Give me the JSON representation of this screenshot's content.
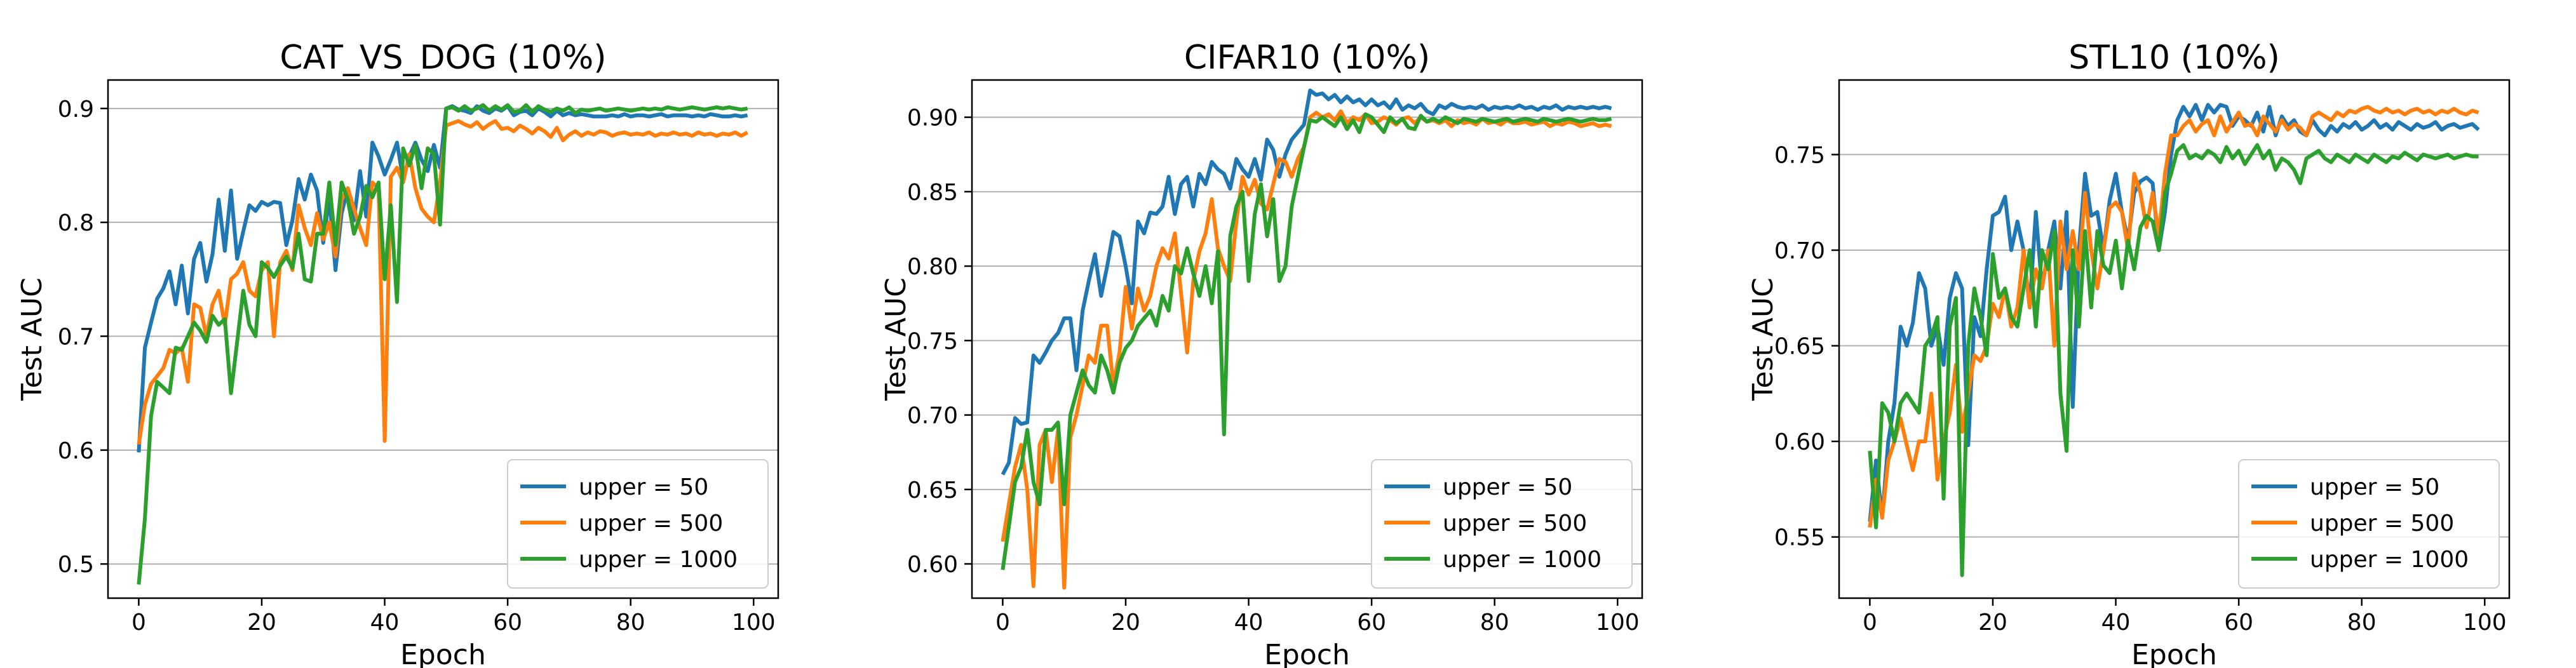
{
  "chart_data": [
    {
      "type": "line",
      "title": "CAT_VS_DOG (10%)",
      "xlabel": "Epoch",
      "ylabel": "Test AUC",
      "xlim": [
        -5,
        104
      ],
      "ylim": [
        0.47,
        0.925
      ],
      "xticks": [
        0,
        20,
        40,
        60,
        80,
        100
      ],
      "yticks": [
        0.5,
        0.6,
        0.7,
        0.8,
        0.9
      ],
      "ytick_labels": [
        "0.5",
        "0.6",
        "0.7",
        "0.8",
        "0.9"
      ],
      "grid": "y",
      "legend_position": "lower-right",
      "series": [
        {
          "name": "upper = 50",
          "color": "#1f77b4",
          "values": [
            0.598,
            0.69,
            0.712,
            0.733,
            0.742,
            0.757,
            0.728,
            0.762,
            0.72,
            0.768,
            0.782,
            0.748,
            0.772,
            0.82,
            0.775,
            0.828,
            0.768,
            0.792,
            0.815,
            0.81,
            0.818,
            0.815,
            0.818,
            0.817,
            0.78,
            0.802,
            0.838,
            0.82,
            0.842,
            0.828,
            0.782,
            0.822,
            0.758,
            0.808,
            0.83,
            0.802,
            0.845,
            0.805,
            0.87,
            0.858,
            0.842,
            0.855,
            0.87,
            0.838,
            0.858,
            0.87,
            0.855,
            0.845,
            0.868,
            0.848,
            0.9,
            0.902,
            0.899,
            0.898,
            0.896,
            0.902,
            0.898,
            0.896,
            0.9,
            0.898,
            0.902,
            0.894,
            0.897,
            0.898,
            0.894,
            0.9,
            0.897,
            0.893,
            0.898,
            0.894,
            0.896,
            0.894,
            0.895,
            0.894,
            0.893,
            0.893,
            0.893,
            0.894,
            0.893,
            0.895,
            0.893,
            0.894,
            0.894,
            0.893,
            0.894,
            0.895,
            0.893,
            0.894,
            0.894,
            0.894,
            0.893,
            0.894,
            0.893,
            0.895,
            0.894,
            0.893,
            0.893,
            0.894,
            0.893,
            0.894
          ]
        },
        {
          "name": "upper = 500",
          "color": "#ff7f0e",
          "values": [
            0.605,
            0.64,
            0.658,
            0.665,
            0.672,
            0.688,
            0.685,
            0.69,
            0.66,
            0.728,
            0.725,
            0.7,
            0.728,
            0.74,
            0.71,
            0.75,
            0.755,
            0.765,
            0.74,
            0.735,
            0.758,
            0.765,
            0.7,
            0.765,
            0.775,
            0.758,
            0.815,
            0.795,
            0.78,
            0.808,
            0.785,
            0.8,
            0.77,
            0.82,
            0.83,
            0.812,
            0.795,
            0.78,
            0.835,
            0.83,
            0.608,
            0.84,
            0.848,
            0.835,
            0.86,
            0.83,
            0.812,
            0.805,
            0.8,
            0.835,
            0.885,
            0.887,
            0.889,
            0.886,
            0.884,
            0.888,
            0.882,
            0.886,
            0.889,
            0.882,
            0.883,
            0.88,
            0.885,
            0.882,
            0.878,
            0.883,
            0.88,
            0.875,
            0.883,
            0.872,
            0.877,
            0.88,
            0.876,
            0.879,
            0.877,
            0.88,
            0.879,
            0.876,
            0.878,
            0.879,
            0.877,
            0.878,
            0.877,
            0.879,
            0.876,
            0.878,
            0.877,
            0.879,
            0.877,
            0.878,
            0.876,
            0.879,
            0.877,
            0.878,
            0.876,
            0.878,
            0.877,
            0.879,
            0.876,
            0.879
          ]
        },
        {
          "name": "upper = 1000",
          "color": "#2ca02c",
          "values": [
            0.482,
            0.54,
            0.63,
            0.66,
            0.655,
            0.65,
            0.69,
            0.688,
            0.7,
            0.712,
            0.705,
            0.695,
            0.718,
            0.71,
            0.715,
            0.65,
            0.695,
            0.74,
            0.71,
            0.7,
            0.765,
            0.76,
            0.752,
            0.762,
            0.77,
            0.76,
            0.79,
            0.75,
            0.748,
            0.79,
            0.79,
            0.835,
            0.78,
            0.835,
            0.82,
            0.79,
            0.805,
            0.832,
            0.822,
            0.835,
            0.75,
            0.815,
            0.73,
            0.865,
            0.85,
            0.868,
            0.83,
            0.865,
            0.86,
            0.798,
            0.9,
            0.901,
            0.898,
            0.902,
            0.898,
            0.9,
            0.903,
            0.898,
            0.902,
            0.899,
            0.903,
            0.897,
            0.898,
            0.903,
            0.897,
            0.902,
            0.899,
            0.897,
            0.9,
            0.898,
            0.901,
            0.896,
            0.899,
            0.898,
            0.899,
            0.9,
            0.898,
            0.899,
            0.9,
            0.899,
            0.898,
            0.899,
            0.9,
            0.899,
            0.9,
            0.899,
            0.901,
            0.9,
            0.899,
            0.9,
            0.901,
            0.9,
            0.899,
            0.9,
            0.901,
            0.9,
            0.901,
            0.9,
            0.899,
            0.9
          ]
        }
      ]
    },
    {
      "type": "line",
      "title": "CIFAR10 (10%)",
      "xlabel": "Epoch",
      "ylabel": "Test AUC",
      "xlim": [
        -5,
        104
      ],
      "ylim": [
        0.577,
        0.925
      ],
      "xticks": [
        0,
        20,
        40,
        60,
        80,
        100
      ],
      "yticks": [
        0.6,
        0.65,
        0.7,
        0.75,
        0.8,
        0.85,
        0.9
      ],
      "ytick_labels": [
        "0.60",
        "0.65",
        "0.70",
        "0.75",
        "0.80",
        "0.85",
        "0.90"
      ],
      "grid": "y",
      "legend_position": "lower-right",
      "series": [
        {
          "name": "upper = 50",
          "color": "#1f77b4",
          "values": [
            0.66,
            0.668,
            0.698,
            0.694,
            0.695,
            0.74,
            0.735,
            0.742,
            0.75,
            0.755,
            0.765,
            0.765,
            0.73,
            0.77,
            0.79,
            0.808,
            0.78,
            0.8,
            0.823,
            0.82,
            0.8,
            0.775,
            0.83,
            0.822,
            0.836,
            0.835,
            0.84,
            0.86,
            0.835,
            0.855,
            0.86,
            0.84,
            0.862,
            0.855,
            0.87,
            0.865,
            0.862,
            0.852,
            0.872,
            0.865,
            0.86,
            0.872,
            0.858,
            0.885,
            0.878,
            0.86,
            0.875,
            0.885,
            0.89,
            0.895,
            0.918,
            0.915,
            0.916,
            0.912,
            0.915,
            0.91,
            0.914,
            0.91,
            0.912,
            0.908,
            0.912,
            0.908,
            0.91,
            0.906,
            0.912,
            0.905,
            0.908,
            0.906,
            0.909,
            0.904,
            0.902,
            0.908,
            0.906,
            0.909,
            0.907,
            0.906,
            0.907,
            0.906,
            0.908,
            0.905,
            0.907,
            0.906,
            0.907,
            0.906,
            0.908,
            0.906,
            0.907,
            0.905,
            0.907,
            0.906,
            0.908,
            0.905,
            0.907,
            0.906,
            0.907,
            0.906,
            0.907,
            0.906,
            0.907,
            0.906
          ]
        },
        {
          "name": "upper = 500",
          "color": "#ff7f0e",
          "values": [
            0.615,
            0.64,
            0.665,
            0.68,
            0.65,
            0.585,
            0.68,
            0.69,
            0.655,
            0.69,
            0.584,
            0.685,
            0.7,
            0.72,
            0.74,
            0.735,
            0.76,
            0.76,
            0.72,
            0.742,
            0.786,
            0.758,
            0.785,
            0.77,
            0.78,
            0.8,
            0.812,
            0.805,
            0.822,
            0.782,
            0.742,
            0.79,
            0.81,
            0.822,
            0.845,
            0.812,
            0.8,
            0.79,
            0.83,
            0.86,
            0.848,
            0.858,
            0.842,
            0.838,
            0.855,
            0.872,
            0.87,
            0.86,
            0.872,
            0.88,
            0.9,
            0.903,
            0.9,
            0.902,
            0.898,
            0.904,
            0.896,
            0.9,
            0.898,
            0.902,
            0.896,
            0.897,
            0.9,
            0.898,
            0.895,
            0.899,
            0.9,
            0.896,
            0.9,
            0.897,
            0.898,
            0.896,
            0.898,
            0.894,
            0.898,
            0.896,
            0.897,
            0.895,
            0.899,
            0.896,
            0.897,
            0.895,
            0.898,
            0.896,
            0.896,
            0.897,
            0.895,
            0.896,
            0.897,
            0.894,
            0.896,
            0.895,
            0.897,
            0.896,
            0.894,
            0.895,
            0.896,
            0.894,
            0.895,
            0.894
          ]
        },
        {
          "name": "upper = 1000",
          "color": "#2ca02c",
          "values": [
            0.596,
            0.625,
            0.655,
            0.665,
            0.69,
            0.655,
            0.64,
            0.69,
            0.69,
            0.695,
            0.64,
            0.7,
            0.715,
            0.73,
            0.72,
            0.715,
            0.74,
            0.73,
            0.715,
            0.735,
            0.745,
            0.75,
            0.76,
            0.765,
            0.77,
            0.76,
            0.78,
            0.77,
            0.8,
            0.795,
            0.812,
            0.795,
            0.78,
            0.8,
            0.775,
            0.81,
            0.687,
            0.82,
            0.84,
            0.85,
            0.79,
            0.835,
            0.855,
            0.82,
            0.845,
            0.79,
            0.8,
            0.84,
            0.86,
            0.88,
            0.898,
            0.897,
            0.9,
            0.897,
            0.894,
            0.9,
            0.892,
            0.898,
            0.89,
            0.902,
            0.9,
            0.895,
            0.89,
            0.9,
            0.896,
            0.899,
            0.893,
            0.892,
            0.901,
            0.897,
            0.899,
            0.897,
            0.9,
            0.898,
            0.896,
            0.899,
            0.898,
            0.897,
            0.899,
            0.898,
            0.897,
            0.898,
            0.899,
            0.897,
            0.898,
            0.899,
            0.898,
            0.897,
            0.899,
            0.898,
            0.897,
            0.898,
            0.899,
            0.898,
            0.897,
            0.898,
            0.899,
            0.898,
            0.898,
            0.899
          ]
        }
      ]
    },
    {
      "type": "line",
      "title": "STL10 (10%)",
      "xlabel": "Epoch",
      "ylabel": "Test AUC",
      "xlim": [
        -5,
        104
      ],
      "ylim": [
        0.518,
        0.789
      ],
      "xticks": [
        0,
        20,
        40,
        60,
        80,
        100
      ],
      "yticks": [
        0.55,
        0.6,
        0.65,
        0.7,
        0.75
      ],
      "ytick_labels": [
        "0.55",
        "0.60",
        "0.65",
        "0.70",
        "0.75"
      ],
      "grid": "y",
      "legend_position": "lower-right",
      "series": [
        {
          "name": "upper = 50",
          "color": "#1f77b4",
          "values": [
            0.558,
            0.59,
            0.56,
            0.6,
            0.62,
            0.66,
            0.65,
            0.662,
            0.688,
            0.68,
            0.65,
            0.66,
            0.64,
            0.675,
            0.688,
            0.68,
            0.598,
            0.665,
            0.655,
            0.69,
            0.718,
            0.72,
            0.728,
            0.7,
            0.715,
            0.7,
            0.67,
            0.72,
            0.68,
            0.7,
            0.715,
            0.68,
            0.72,
            0.618,
            0.7,
            0.74,
            0.718,
            0.72,
            0.7,
            0.726,
            0.74,
            0.72,
            0.705,
            0.73,
            0.736,
            0.738,
            0.735,
            0.7,
            0.72,
            0.75,
            0.768,
            0.775,
            0.77,
            0.776,
            0.768,
            0.776,
            0.772,
            0.776,
            0.775,
            0.765,
            0.77,
            0.768,
            0.765,
            0.772,
            0.762,
            0.775,
            0.76,
            0.77,
            0.765,
            0.768,
            0.762,
            0.76,
            0.768,
            0.763,
            0.76,
            0.765,
            0.762,
            0.766,
            0.764,
            0.767,
            0.763,
            0.765,
            0.768,
            0.764,
            0.766,
            0.763,
            0.767,
            0.765,
            0.763,
            0.766,
            0.764,
            0.765,
            0.767,
            0.763,
            0.765,
            0.766,
            0.764,
            0.765,
            0.766,
            0.763
          ]
        },
        {
          "name": "upper = 500",
          "color": "#ff7f0e",
          "values": [
            0.555,
            0.58,
            0.56,
            0.59,
            0.6,
            0.612,
            0.598,
            0.585,
            0.6,
            0.6,
            0.625,
            0.58,
            0.6,
            0.615,
            0.64,
            0.605,
            0.625,
            0.645,
            0.642,
            0.65,
            0.672,
            0.665,
            0.68,
            0.66,
            0.67,
            0.7,
            0.67,
            0.69,
            0.68,
            0.7,
            0.65,
            0.715,
            0.69,
            0.71,
            0.69,
            0.73,
            0.7,
            0.68,
            0.7,
            0.722,
            0.725,
            0.72,
            0.7,
            0.74,
            0.73,
            0.712,
            0.73,
            0.708,
            0.74,
            0.76,
            0.76,
            0.765,
            0.768,
            0.762,
            0.766,
            0.768,
            0.76,
            0.77,
            0.762,
            0.767,
            0.772,
            0.765,
            0.766,
            0.76,
            0.77,
            0.766,
            0.762,
            0.768,
            0.763,
            0.766,
            0.764,
            0.76,
            0.77,
            0.772,
            0.77,
            0.768,
            0.772,
            0.77,
            0.773,
            0.772,
            0.774,
            0.775,
            0.773,
            0.772,
            0.774,
            0.772,
            0.773,
            0.771,
            0.773,
            0.774,
            0.772,
            0.773,
            0.771,
            0.773,
            0.772,
            0.774,
            0.772,
            0.771,
            0.773,
            0.772
          ]
        },
        {
          "name": "upper = 1000",
          "color": "#2ca02c",
          "values": [
            0.595,
            0.555,
            0.62,
            0.615,
            0.6,
            0.62,
            0.625,
            0.62,
            0.615,
            0.65,
            0.655,
            0.665,
            0.57,
            0.66,
            0.675,
            0.53,
            0.65,
            0.68,
            0.665,
            0.645,
            0.698,
            0.675,
            0.68,
            0.665,
            0.66,
            0.68,
            0.7,
            0.66,
            0.7,
            0.69,
            0.71,
            0.625,
            0.595,
            0.7,
            0.66,
            0.71,
            0.67,
            0.71,
            0.692,
            0.688,
            0.705,
            0.68,
            0.705,
            0.69,
            0.712,
            0.718,
            0.715,
            0.7,
            0.73,
            0.74,
            0.752,
            0.755,
            0.748,
            0.75,
            0.748,
            0.752,
            0.75,
            0.746,
            0.754,
            0.748,
            0.752,
            0.745,
            0.75,
            0.755,
            0.748,
            0.752,
            0.742,
            0.748,
            0.746,
            0.742,
            0.735,
            0.748,
            0.75,
            0.752,
            0.748,
            0.746,
            0.75,
            0.748,
            0.746,
            0.75,
            0.748,
            0.746,
            0.75,
            0.748,
            0.746,
            0.749,
            0.748,
            0.751,
            0.749,
            0.747,
            0.75,
            0.749,
            0.748,
            0.749,
            0.75,
            0.748,
            0.749,
            0.75,
            0.749,
            0.749
          ]
        }
      ]
    }
  ]
}
